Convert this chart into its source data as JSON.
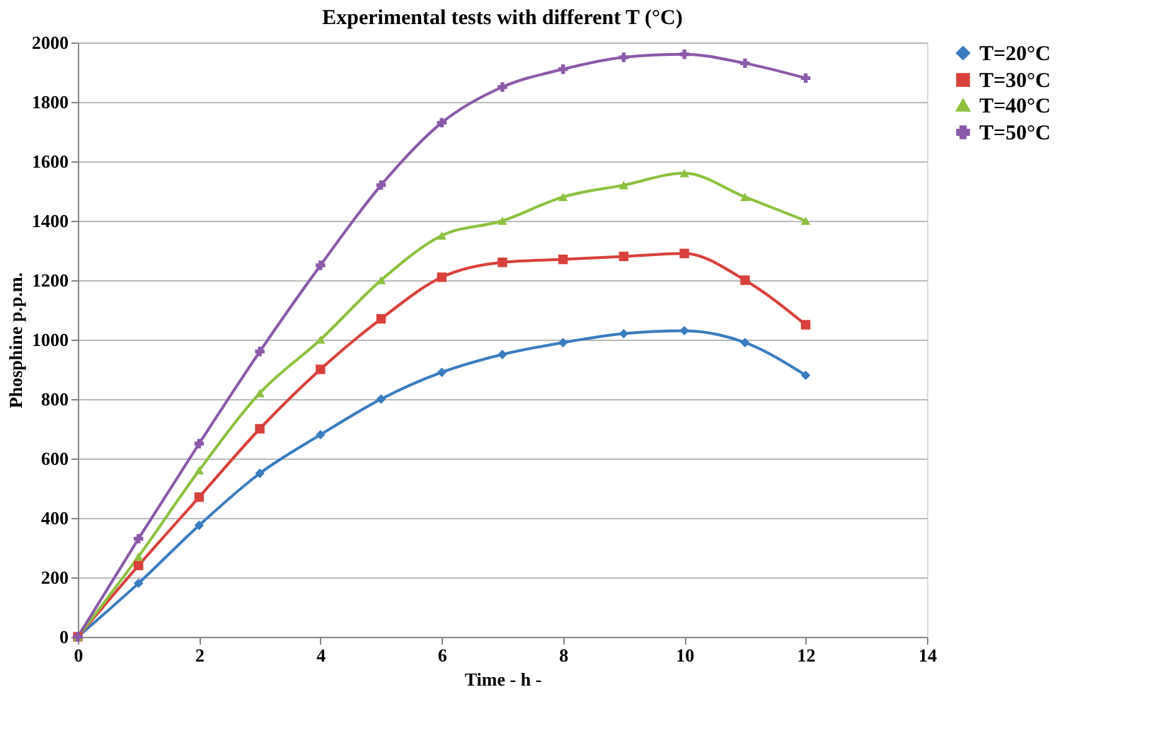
{
  "chart_data": {
    "type": "line",
    "title": "Experimental tests with different  T (°C)",
    "xlabel": "Time - h -",
    "ylabel": "Phosphine  p.p.m.",
    "x": [
      0,
      1,
      2,
      3,
      4,
      5,
      6,
      7,
      8,
      9,
      10,
      11,
      12
    ],
    "series": [
      {
        "name": "T=20°C",
        "color": "#3a7dc0",
        "marker": "diamond",
        "values": [
          0,
          180,
          375,
          550,
          680,
          800,
          890,
          950,
          990,
          1020,
          1030,
          990,
          880
        ]
      },
      {
        "name": "T=30°C",
        "color": "#d9403b",
        "marker": "square",
        "values": [
          0,
          240,
          470,
          700,
          900,
          1070,
          1210,
          1260,
          1270,
          1280,
          1290,
          1200,
          1050
        ]
      },
      {
        "name": "T=40°C",
        "color": "#8dc13f",
        "marker": "triangle",
        "values": [
          0,
          270,
          560,
          820,
          1000,
          1200,
          1350,
          1400,
          1480,
          1520,
          1560,
          1480,
          1400
        ]
      },
      {
        "name": "T=50°C",
        "color": "#8a5aa8",
        "marker": "cross",
        "values": [
          0,
          330,
          650,
          960,
          1250,
          1520,
          1730,
          1850,
          1910,
          1950,
          1960,
          1930,
          1880
        ]
      }
    ],
    "xlim": [
      0,
      14
    ],
    "xticks": [
      0,
      2,
      4,
      6,
      8,
      10,
      12,
      14
    ],
    "ylim": [
      0,
      2000
    ],
    "yticks": [
      0,
      200,
      400,
      600,
      800,
      1000,
      1200,
      1400,
      1600,
      1800,
      2000
    ],
    "grid": "y",
    "legend": "right",
    "line_style": "solid"
  }
}
